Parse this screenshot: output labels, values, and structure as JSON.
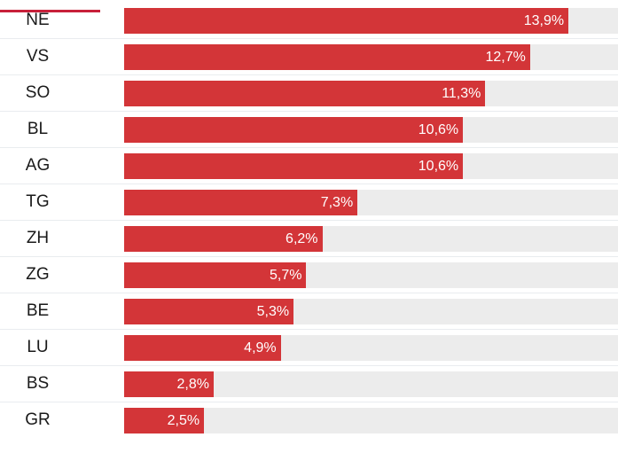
{
  "colors": {
    "bar": "#d33538",
    "track": "#ececec",
    "accent_line": "#c8203a",
    "divider": "#e9ecef",
    "label_text": "#1a1a1a",
    "value_text": "#ffffff"
  },
  "chart_data": {
    "type": "bar",
    "orientation": "horizontal",
    "title": "",
    "xlabel": "",
    "ylabel": "",
    "xlim": [
      0,
      15.45
    ],
    "grid": false,
    "legend": "none",
    "categories": [
      "NE",
      "VS",
      "SO",
      "BL",
      "AG",
      "TG",
      "ZH",
      "ZG",
      "BE",
      "LU",
      "BS",
      "GR"
    ],
    "values": [
      13.9,
      12.7,
      11.3,
      10.6,
      10.6,
      7.3,
      6.2,
      5.7,
      5.3,
      4.9,
      2.8,
      2.5
    ],
    "value_labels": [
      "13,9%",
      "12,7%",
      "11,3%",
      "10,6%",
      "10,6%",
      "7,3%",
      "6,2%",
      "5,7%",
      "5,3%",
      "4,9%",
      "2,8%",
      "2,5%"
    ],
    "unit": "%"
  }
}
